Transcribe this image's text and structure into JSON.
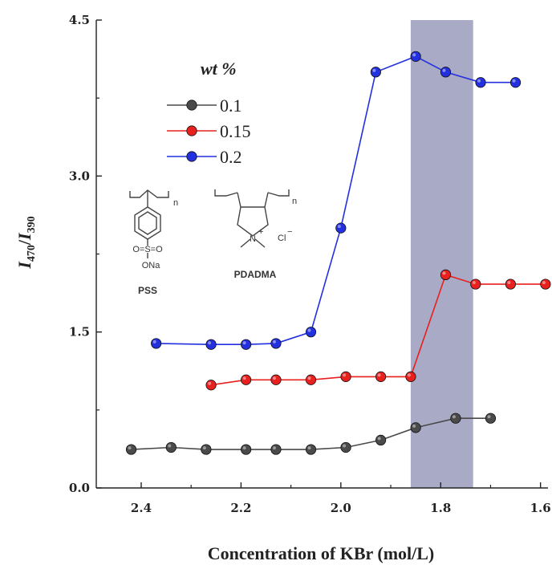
{
  "chart_data": {
    "type": "line",
    "xlabel": "Concentration of KBr (mol/L)",
    "ylabel": "I470/I390",
    "ylabel_parts": {
      "i1": "I",
      "s1": "470",
      "slash": "/",
      "i2": "I",
      "s2": "390"
    },
    "xlim": [
      2.49,
      1.585
    ],
    "ylim": [
      0.0,
      4.5
    ],
    "x_axis_reversed": true,
    "xticks": [
      "2.4",
      "2.2",
      "2.0",
      "1.8",
      "1.6"
    ],
    "yticks": [
      "0.0",
      "1.5",
      "3.0",
      "4.5"
    ],
    "legend": {
      "title": "wt %",
      "placement": "upper-left"
    },
    "highlight_band": {
      "x_from": 1.86,
      "x_to": 1.735,
      "color": "#a9aac6"
    },
    "series": [
      {
        "name": "0.1",
        "color": "#4a4a4a",
        "points": [
          {
            "x": 2.42,
            "y": 0.37
          },
          {
            "x": 2.34,
            "y": 0.39
          },
          {
            "x": 2.27,
            "y": 0.37
          },
          {
            "x": 2.19,
            "y": 0.37
          },
          {
            "x": 2.13,
            "y": 0.37
          },
          {
            "x": 2.06,
            "y": 0.37
          },
          {
            "x": 1.99,
            "y": 0.39
          },
          {
            "x": 1.92,
            "y": 0.46
          },
          {
            "x": 1.85,
            "y": 0.58
          },
          {
            "x": 1.77,
            "y": 0.67
          },
          {
            "x": 1.7,
            "y": 0.67
          }
        ]
      },
      {
        "name": "0.15",
        "color": "#e8201e",
        "points": [
          {
            "x": 2.26,
            "y": 0.99
          },
          {
            "x": 2.19,
            "y": 1.04
          },
          {
            "x": 2.13,
            "y": 1.04
          },
          {
            "x": 2.06,
            "y": 1.04
          },
          {
            "x": 1.99,
            "y": 1.07
          },
          {
            "x": 1.92,
            "y": 1.07
          },
          {
            "x": 1.86,
            "y": 1.07
          },
          {
            "x": 1.79,
            "y": 2.05
          },
          {
            "x": 1.73,
            "y": 1.96
          },
          {
            "x": 1.66,
            "y": 1.96
          },
          {
            "x": 1.59,
            "y": 1.96
          }
        ]
      },
      {
        "name": "0.2",
        "color": "#2330e0",
        "points": [
          {
            "x": 2.37,
            "y": 1.39
          },
          {
            "x": 2.26,
            "y": 1.38
          },
          {
            "x": 2.19,
            "y": 1.38
          },
          {
            "x": 2.13,
            "y": 1.39
          },
          {
            "x": 2.06,
            "y": 1.5
          },
          {
            "x": 2.0,
            "y": 2.5
          },
          {
            "x": 1.93,
            "y": 4.0
          },
          {
            "x": 1.85,
            "y": 4.15
          },
          {
            "x": 1.79,
            "y": 4.0
          },
          {
            "x": 1.72,
            "y": 3.9
          },
          {
            "x": 1.65,
            "y": 3.9
          }
        ]
      }
    ],
    "annotations": {
      "pss_label": "PSS",
      "pdadma_label": "PDADMA",
      "ona": "ONa",
      "o_s_o": "O=S=O",
      "n_sub": "n",
      "cl": "Cl",
      "cl_charge": "−",
      "n_atom": "N",
      "n_charge": "+"
    }
  }
}
